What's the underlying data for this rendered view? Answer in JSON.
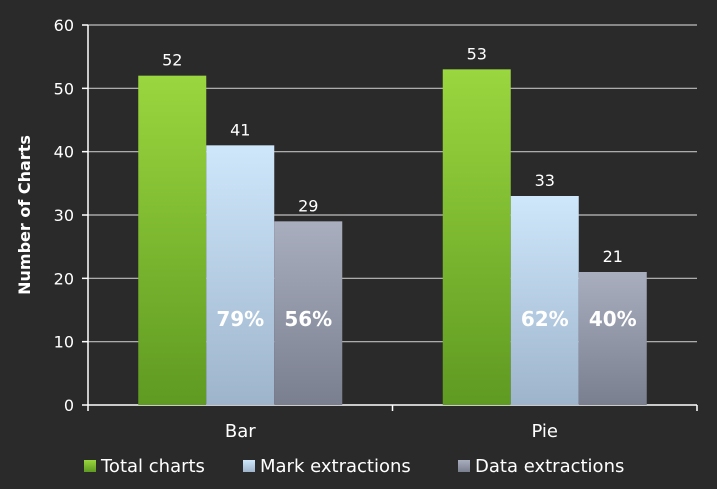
{
  "chart_data": {
    "type": "bar",
    "title": "",
    "xlabel": "",
    "ylabel": "Number of Charts",
    "ylim": [
      0,
      60
    ],
    "yticks": [
      0,
      10,
      20,
      30,
      40,
      50,
      60
    ],
    "grid": true,
    "legend_position": "bottom",
    "categories": [
      "Bar",
      "Pie"
    ],
    "series": [
      {
        "name": "Total charts",
        "values": [
          52,
          53
        ],
        "color_top": "#9ad63e",
        "color_bottom": "#5f9a22"
      },
      {
        "name": "Mark extractions",
        "values": [
          41,
          33
        ],
        "color_top": "#cfe7fb",
        "color_bottom": "#9db4cb"
      },
      {
        "name": "Data extractions",
        "values": [
          29,
          21
        ],
        "color_top": "#a9aebf",
        "color_bottom": "#7a7f8f"
      }
    ],
    "percent_labels": [
      {
        "category": "Bar",
        "series": "Mark extractions",
        "text": "79%"
      },
      {
        "category": "Bar",
        "series": "Data extractions",
        "text": "56%"
      },
      {
        "category": "Pie",
        "series": "Mark extractions",
        "text": "62%"
      },
      {
        "category": "Pie",
        "series": "Data extractions",
        "text": "40%"
      }
    ]
  }
}
